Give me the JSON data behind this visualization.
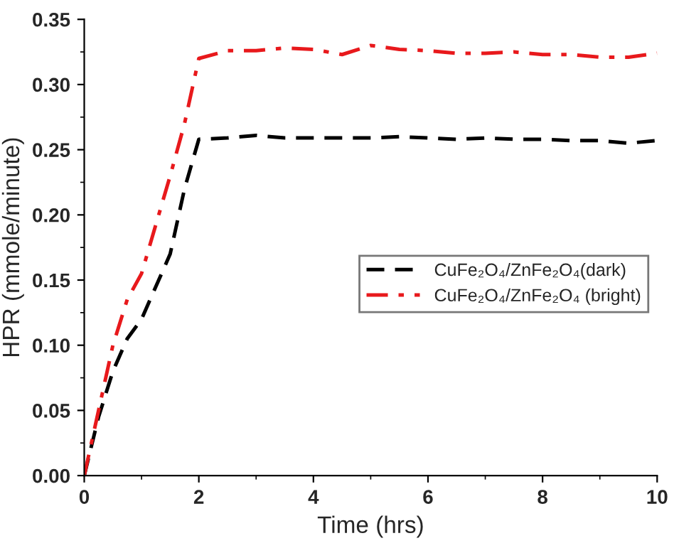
{
  "chart_data": {
    "type": "line",
    "xlabel": "Time (hrs)",
    "ylabel": "HPR (mmole/minute)",
    "xlim": [
      0,
      10
    ],
    "xticks": [
      0,
      2,
      4,
      6,
      8,
      10
    ],
    "ylim": [
      0,
      0.35
    ],
    "yticks": [
      {
        "value": 0,
        "label": "0.00"
      },
      {
        "value": 0.05,
        "label": "0.05"
      },
      {
        "value": 0.1,
        "label": "0.10"
      },
      {
        "value": 0.15,
        "label": "0.15"
      },
      {
        "value": 0.2,
        "label": "0.20"
      },
      {
        "value": 0.25,
        "label": "0.25"
      },
      {
        "value": 0.3,
        "label": "0.30"
      },
      {
        "value": 0.35,
        "label": "0.35"
      }
    ],
    "grid": false,
    "legend": "right",
    "marker": "none",
    "series": [
      {
        "name": "CuFe₂O₄/ZnFe₂O₄(dark)",
        "color": "#000000",
        "line_style": "dashed",
        "x": [
          0,
          0.25,
          0.5,
          0.75,
          1,
          1.5,
          1.75,
          2,
          2.5,
          3,
          3.5,
          4,
          4.5,
          5,
          5.5,
          6,
          6.5,
          7,
          7.5,
          8,
          8.5,
          9,
          9.5,
          10
        ],
        "values": [
          0,
          0.045,
          0.08,
          0.105,
          0.12,
          0.17,
          0.22,
          0.258,
          0.259,
          0.261,
          0.259,
          0.259,
          0.259,
          0.259,
          0.26,
          0.259,
          0.258,
          0.259,
          0.258,
          0.258,
          0.257,
          0.257,
          0.255,
          0.257
        ]
      },
      {
        "name": "CuFe₂O₄/ZnFe₂O₄ (bright)",
        "color": "#e8191c",
        "line_style": "dashdot",
        "x": [
          0,
          0.25,
          0.5,
          0.75,
          1,
          1.5,
          1.75,
          2,
          2.5,
          3,
          3.5,
          4,
          4.5,
          5,
          5.5,
          6,
          6.5,
          7,
          7.5,
          8,
          8.5,
          9,
          9.5,
          10
        ],
        "values": [
          0,
          0.05,
          0.1,
          0.135,
          0.155,
          0.23,
          0.27,
          0.32,
          0.326,
          0.326,
          0.328,
          0.327,
          0.323,
          0.33,
          0.327,
          0.326,
          0.324,
          0.324,
          0.325,
          0.323,
          0.323,
          0.321,
          0.321,
          0.324
        ]
      }
    ]
  }
}
